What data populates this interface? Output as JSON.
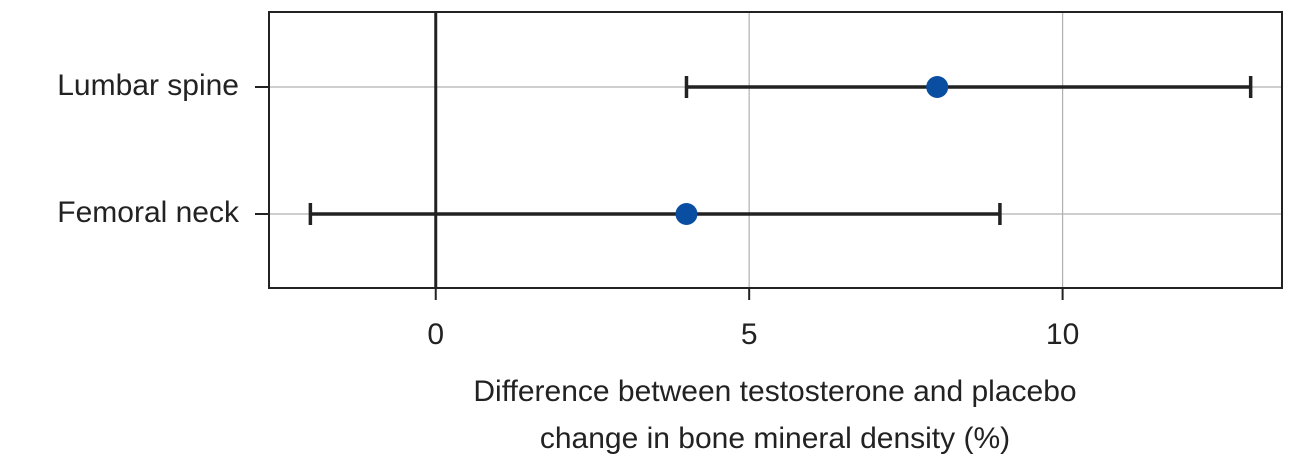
{
  "chart_data": {
    "type": "forest",
    "categories": [
      "Lumbar spine",
      "Femoral neck"
    ],
    "values": [
      8,
      4
    ],
    "lower": [
      4,
      -2
    ],
    "upper": [
      13,
      9
    ],
    "color": "#0a4ea2",
    "errorbar_color": "#222222",
    "xlabel": [
      "Difference between testosterone and placebo",
      "change in bone mineral density (%)"
    ],
    "xlim": [
      -2.66,
      13.5
    ],
    "xticks": [
      0,
      5,
      10
    ],
    "reference_line": 0,
    "grid": true
  }
}
